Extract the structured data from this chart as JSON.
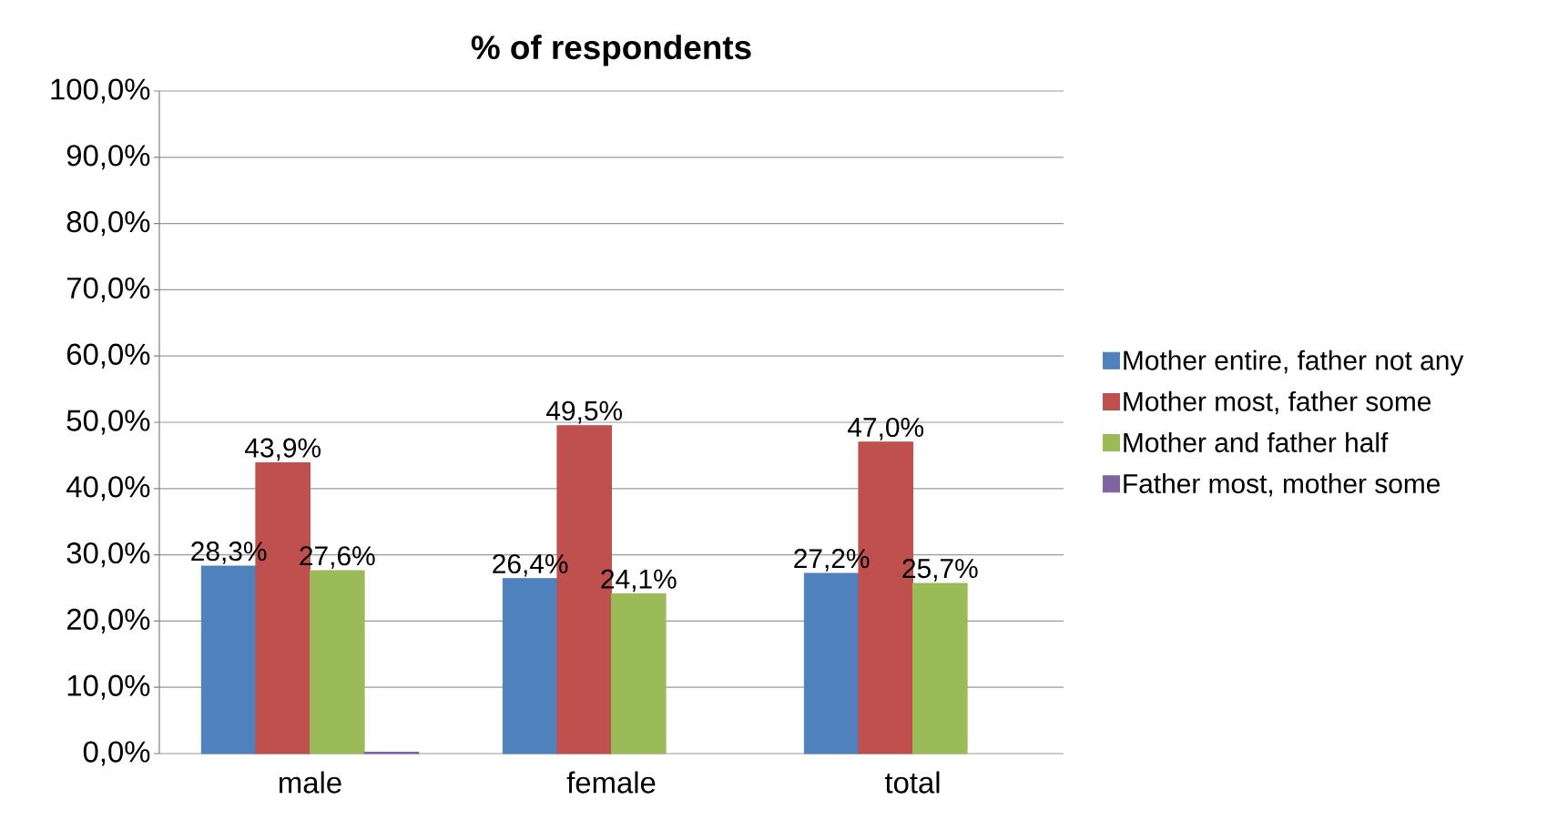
{
  "chart_data": {
    "type": "bar",
    "title": "**% of respondents**",
    "categories": [
      "male",
      "female",
      "total"
    ],
    "series": [
      {
        "name": "Mother entire, father not any",
        "color": "#4f81bd",
        "values": [
          28.3,
          26.4,
          27.2
        ],
        "value_labels": [
          "28,3%",
          "26,4%",
          "27,2%"
        ]
      },
      {
        "name": "Mother most, father some",
        "color": "#c0504d",
        "values": [
          43.9,
          49.5,
          47.0
        ],
        "value_labels": [
          "43,9%",
          "49,5%",
          "47,0%"
        ]
      },
      {
        "name": "Mother and father half",
        "color": "#9bbb59",
        "values": [
          27.6,
          24.1,
          25.7
        ],
        "value_labels": [
          "27,6%",
          "24,1%",
          "25,7%"
        ]
      },
      {
        "name": "Father most, mother some",
        "color": "#8064a2",
        "values": [
          0.2,
          null,
          null
        ],
        "value_labels": [
          null,
          null,
          null
        ]
      }
    ],
    "ylim": [
      0,
      100
    ],
    "yticks": [
      {
        "value": 0,
        "label": "0,0%"
      },
      {
        "value": 10,
        "label": "10,0%"
      },
      {
        "value": 20,
        "label": "20,0%"
      },
      {
        "value": 30,
        "label": "30,0%"
      },
      {
        "value": 40,
        "label": "40,0%"
      },
      {
        "value": 50,
        "label": "50,0%"
      },
      {
        "value": 60,
        "label": "60,0%"
      },
      {
        "value": 70,
        "label": "70,0%"
      },
      {
        "value": 80,
        "label": "80,0%"
      },
      {
        "value": 90,
        "label": "90,0%"
      },
      {
        "value": 100,
        "label": "100,0%"
      }
    ],
    "grid": "y",
    "legend": "right"
  }
}
